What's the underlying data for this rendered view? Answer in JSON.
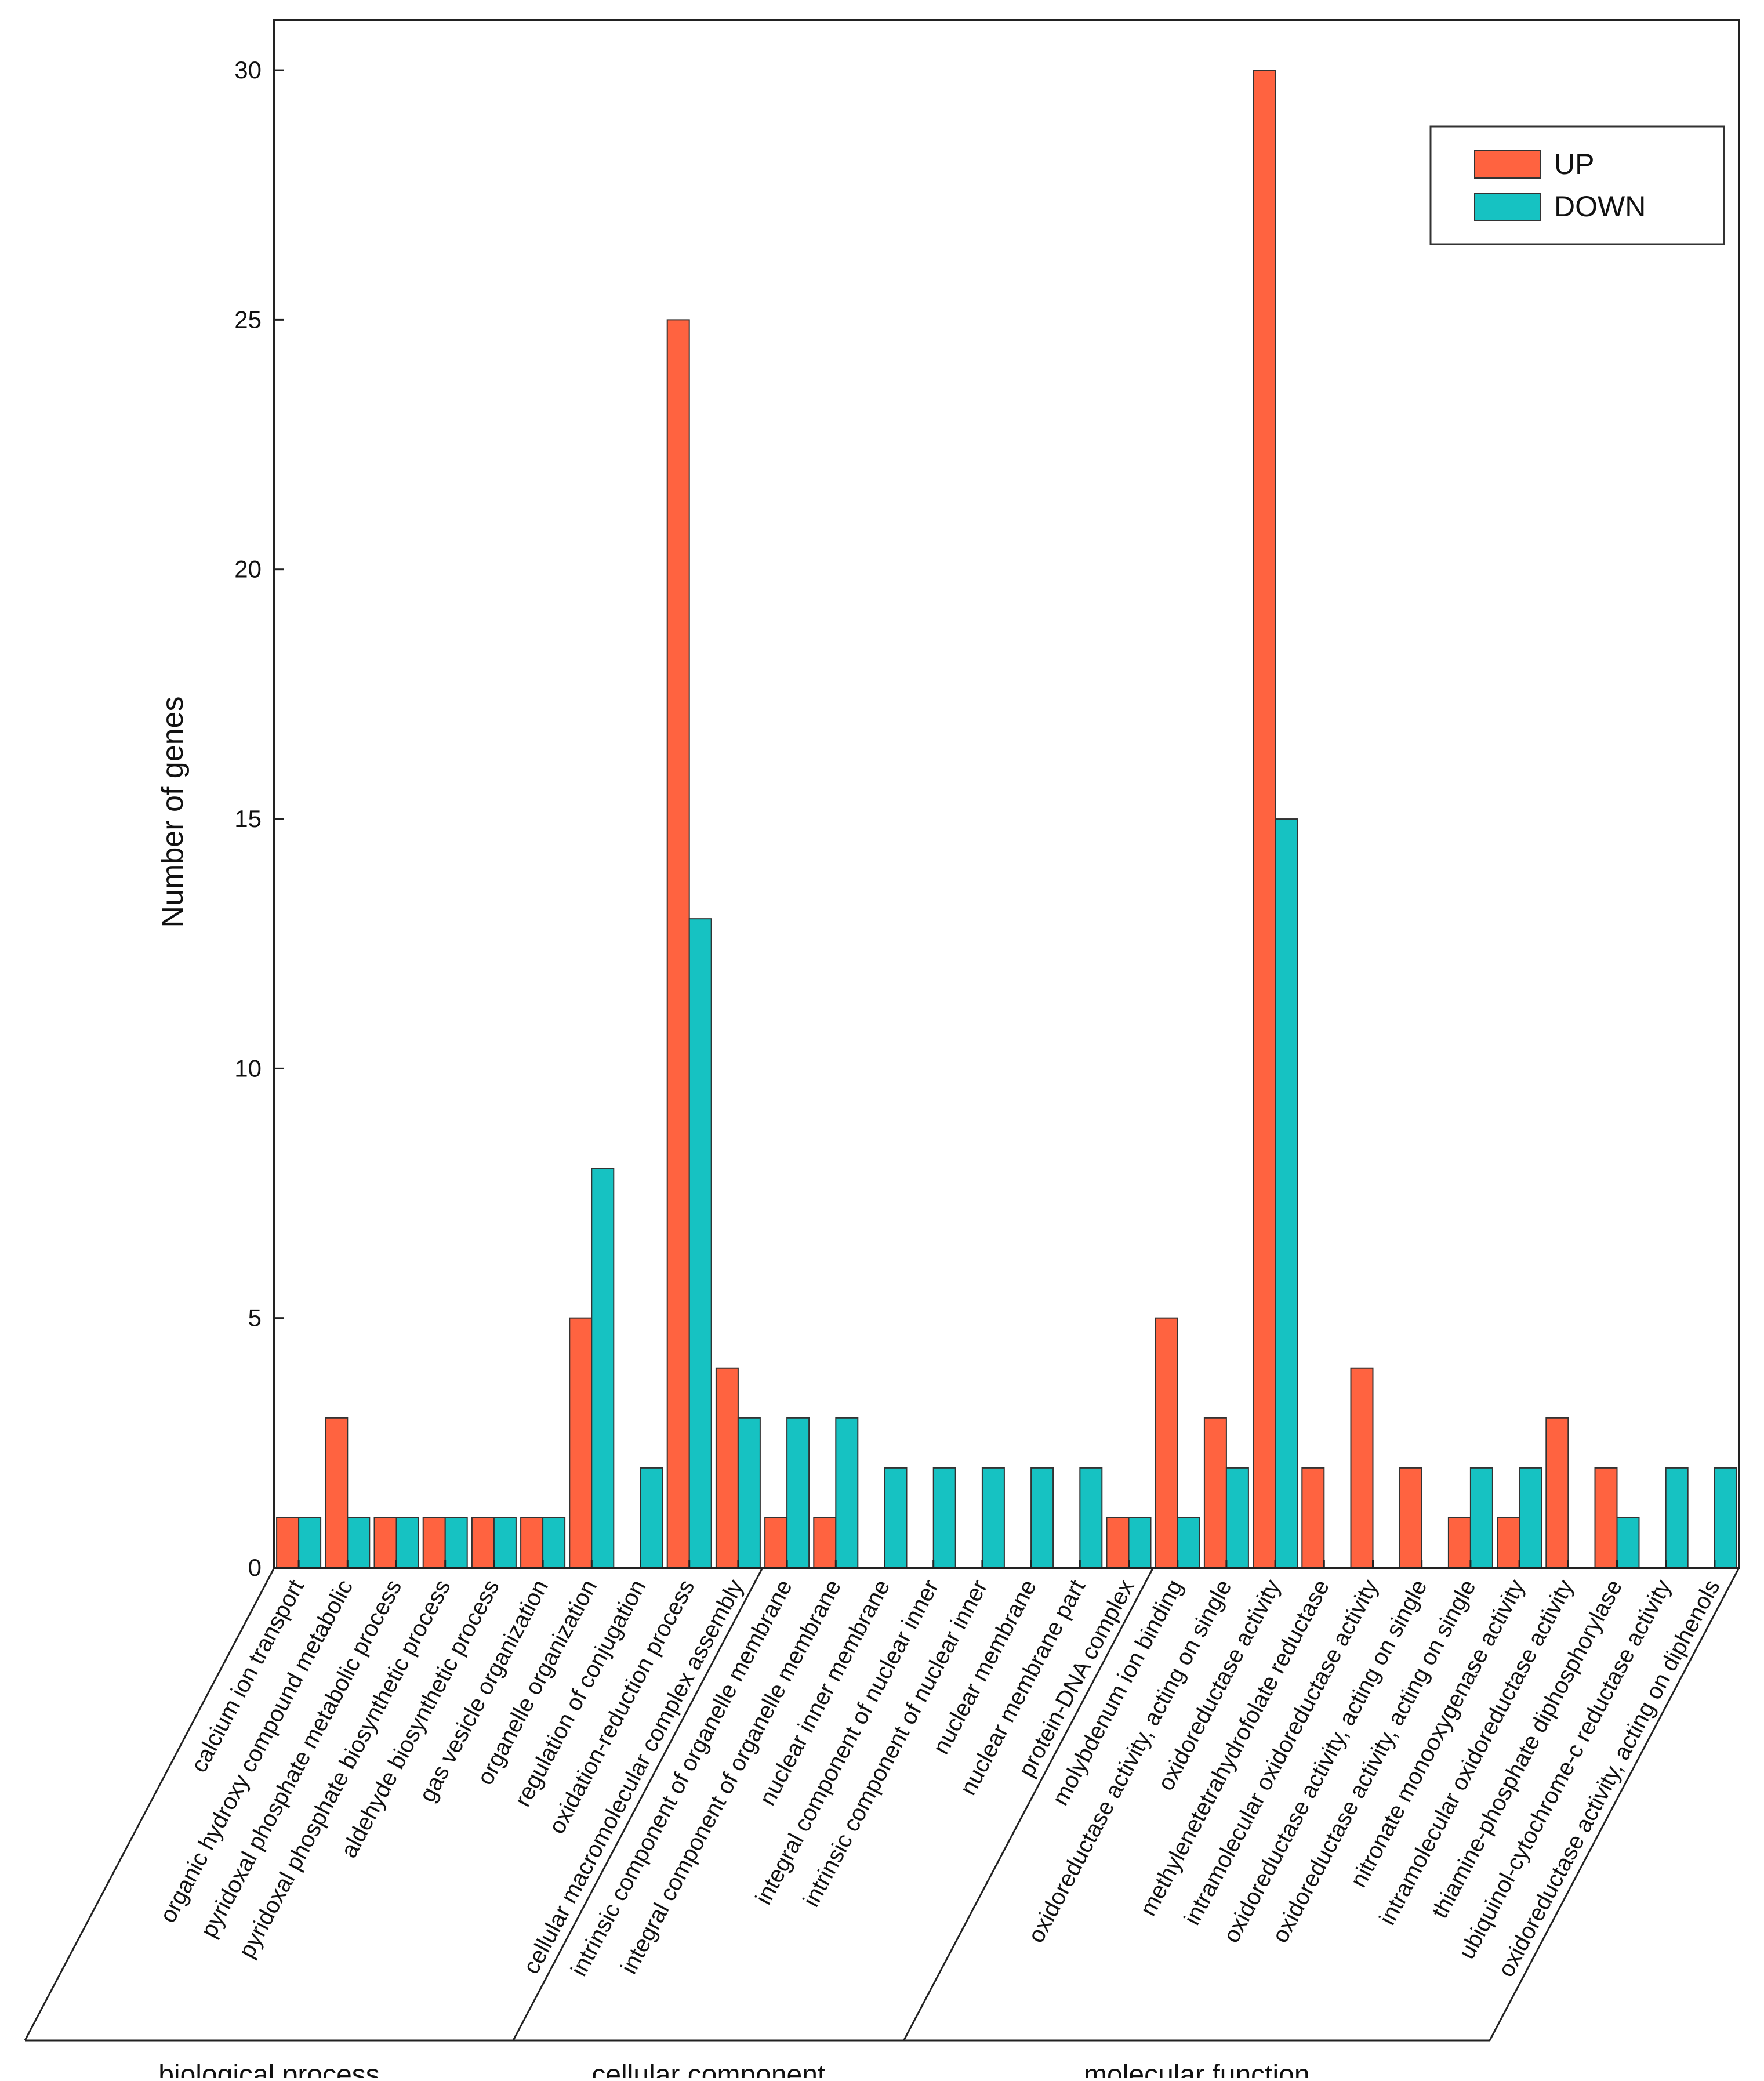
{
  "chart_data": {
    "type": "bar",
    "title": "",
    "xlabel": "",
    "ylabel": "Number of genes",
    "ylim": [
      0,
      31
    ],
    "yticks": [
      0,
      5,
      10,
      15,
      20,
      25,
      30
    ],
    "legend": "top-right",
    "grid": false,
    "categories": [
      "calcium ion transport",
      "organic hydroxy compound metabolic",
      "pyridoxal phosphate metabolic process",
      "pyridoxal phosphate biosynthetic process",
      "aldehyde biosynthetic process",
      "gas vesicle organization",
      "organelle organization",
      "regulation of conjugation",
      "oxidation-reduction process",
      "cellular macromolecular complex assembly",
      "intrinsic component of organelle membrane",
      "integral component of organelle membrane",
      "nuclear inner membrane",
      "integral component of nuclear inner",
      "intrinsic component of nuclear inner",
      "nuclear membrane",
      "nuclear membrane part",
      "protein-DNA complex",
      "molybdenum ion binding",
      "oxidoreductase activity, acting on single",
      "oxidoreductase activity",
      "methylenetetrahydrofolate reductase",
      "intramolecular oxidoreductase activity",
      "oxidoreductase activity, acting on single",
      "oxidoreductase activity, acting on single",
      "nitronate monooxygenase activity",
      "intramolecular oxidoreductase activity",
      "thiamine-phosphate diphosphorylase",
      "ubiquinol-cytochrome-c reductase activity",
      "oxidoreductase activity, acting on diphenols"
    ],
    "series": [
      {
        "name": "UP",
        "color": "#ff6340",
        "values": [
          1,
          3,
          1,
          1,
          1,
          1,
          5,
          0,
          25,
          4,
          1,
          1,
          0,
          0,
          0,
          0,
          0,
          1,
          5,
          3,
          30,
          2,
          4,
          2,
          1,
          1,
          3,
          2,
          0,
          0
        ]
      },
      {
        "name": "DOWN",
        "color": "#16c2c2",
        "values": [
          1,
          1,
          1,
          1,
          1,
          1,
          8,
          2,
          13,
          3,
          3,
          3,
          2,
          2,
          2,
          2,
          2,
          1,
          1,
          2,
          15,
          0,
          0,
          0,
          2,
          2,
          0,
          1,
          2,
          2
        ]
      }
    ],
    "groups": [
      {
        "label": "biological process",
        "start": 0,
        "end": 9
      },
      {
        "label": "cellular component",
        "start": 10,
        "end": 17
      },
      {
        "label": "molecular function",
        "start": 18,
        "end": 29
      }
    ]
  }
}
